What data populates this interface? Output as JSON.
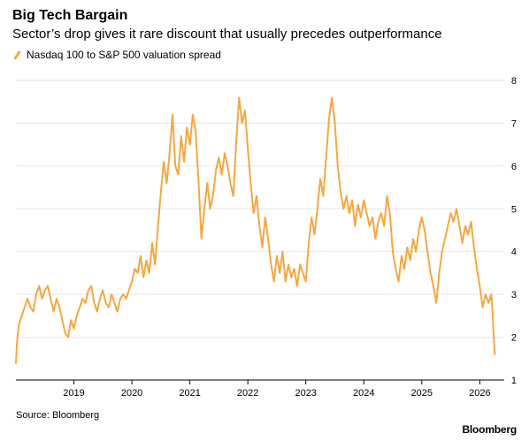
{
  "header": {
    "title": "Big Tech Bargain",
    "subtitle": "Sector’s drop gives it rare discount that usually precedes outperformance"
  },
  "legend": {
    "label": "Nasdaq 100 to S&P 500 valuation spread"
  },
  "footer": {
    "source": "Source: Bloomberg",
    "brand": "Bloomberg"
  },
  "colors": {
    "series": "#f5a742",
    "grid": "#e6e6e6",
    "axis": "#000000"
  },
  "chart_data": {
    "type": "line",
    "title": "Big Tech Bargain",
    "subtitle": "Sector’s drop gives it rare discount that usually precedes outperformance",
    "xlabel": "",
    "ylabel": "",
    "xlim": [
      2018.0,
      2026.3
    ],
    "ylim": [
      1,
      8
    ],
    "x_ticks": [
      2019,
      2020,
      2021,
      2022,
      2023,
      2024,
      2025,
      2026
    ],
    "x_tick_labels": [
      "2019",
      "2020",
      "2021",
      "2022",
      "2023",
      "2024",
      "2025",
      "2026"
    ],
    "y_ticks": [
      1,
      2,
      3,
      4,
      5,
      6,
      7,
      8
    ],
    "y_tick_labels": [
      "1",
      "2",
      "3",
      "4",
      "5",
      "6",
      "7",
      "8"
    ],
    "y_axis_side": "right",
    "grid": true,
    "series": [
      {
        "name": "Nasdaq 100 to S&P 500 valuation spread",
        "points": [
          [
            2018.0,
            1.4
          ],
          [
            2018.02,
            1.9
          ],
          [
            2018.05,
            2.3
          ],
          [
            2018.1,
            2.5
          ],
          [
            2018.15,
            2.7
          ],
          [
            2018.2,
            2.9
          ],
          [
            2018.25,
            2.7
          ],
          [
            2018.3,
            2.6
          ],
          [
            2018.35,
            3.0
          ],
          [
            2018.4,
            3.2
          ],
          [
            2018.45,
            2.9
          ],
          [
            2018.5,
            3.1
          ],
          [
            2018.55,
            3.2
          ],
          [
            2018.6,
            2.9
          ],
          [
            2018.65,
            2.6
          ],
          [
            2018.7,
            2.9
          ],
          [
            2018.75,
            2.7
          ],
          [
            2018.8,
            2.4
          ],
          [
            2018.85,
            2.1
          ],
          [
            2018.9,
            2.0
          ],
          [
            2018.95,
            2.4
          ],
          [
            2019.0,
            2.2
          ],
          [
            2019.05,
            2.5
          ],
          [
            2019.1,
            2.7
          ],
          [
            2019.15,
            2.9
          ],
          [
            2019.2,
            2.8
          ],
          [
            2019.25,
            3.1
          ],
          [
            2019.3,
            3.2
          ],
          [
            2019.35,
            2.8
          ],
          [
            2019.4,
            2.6
          ],
          [
            2019.45,
            2.9
          ],
          [
            2019.5,
            3.1
          ],
          [
            2019.55,
            2.8
          ],
          [
            2019.6,
            2.7
          ],
          [
            2019.65,
            3.0
          ],
          [
            2019.7,
            2.8
          ],
          [
            2019.75,
            2.6
          ],
          [
            2019.8,
            2.9
          ],
          [
            2019.85,
            3.0
          ],
          [
            2019.9,
            2.9
          ],
          [
            2019.95,
            3.1
          ],
          [
            2020.0,
            3.3
          ],
          [
            2020.05,
            3.6
          ],
          [
            2020.1,
            3.5
          ],
          [
            2020.15,
            3.9
          ],
          [
            2020.2,
            3.4
          ],
          [
            2020.25,
            3.8
          ],
          [
            2020.3,
            3.5
          ],
          [
            2020.35,
            4.2
          ],
          [
            2020.4,
            3.7
          ],
          [
            2020.45,
            4.6
          ],
          [
            2020.5,
            5.4
          ],
          [
            2020.55,
            6.1
          ],
          [
            2020.6,
            5.6
          ],
          [
            2020.65,
            6.3
          ],
          [
            2020.7,
            7.2
          ],
          [
            2020.75,
            6.0
          ],
          [
            2020.8,
            5.8
          ],
          [
            2020.85,
            6.7
          ],
          [
            2020.9,
            6.1
          ],
          [
            2020.95,
            6.9
          ],
          [
            2021.0,
            6.5
          ],
          [
            2021.05,
            7.2
          ],
          [
            2021.1,
            6.8
          ],
          [
            2021.15,
            5.6
          ],
          [
            2021.2,
            4.3
          ],
          [
            2021.25,
            5.0
          ],
          [
            2021.3,
            5.6
          ],
          [
            2021.35,
            5.0
          ],
          [
            2021.4,
            5.3
          ],
          [
            2021.45,
            5.9
          ],
          [
            2021.5,
            6.2
          ],
          [
            2021.55,
            5.8
          ],
          [
            2021.6,
            6.3
          ],
          [
            2021.65,
            6.0
          ],
          [
            2021.7,
            5.6
          ],
          [
            2021.75,
            5.3
          ],
          [
            2021.8,
            6.6
          ],
          [
            2021.85,
            7.6
          ],
          [
            2021.9,
            7.0
          ],
          [
            2021.95,
            7.3
          ],
          [
            2022.0,
            6.4
          ],
          [
            2022.05,
            5.6
          ],
          [
            2022.1,
            4.9
          ],
          [
            2022.15,
            5.3
          ],
          [
            2022.2,
            4.6
          ],
          [
            2022.25,
            4.1
          ],
          [
            2022.3,
            4.8
          ],
          [
            2022.35,
            4.3
          ],
          [
            2022.4,
            3.7
          ],
          [
            2022.45,
            3.3
          ],
          [
            2022.5,
            3.9
          ],
          [
            2022.55,
            3.5
          ],
          [
            2022.6,
            4.0
          ],
          [
            2022.65,
            3.3
          ],
          [
            2022.7,
            3.7
          ],
          [
            2022.75,
            3.4
          ],
          [
            2022.8,
            3.6
          ],
          [
            2022.85,
            3.2
          ],
          [
            2022.9,
            3.7
          ],
          [
            2022.95,
            3.5
          ],
          [
            2023.0,
            3.3
          ],
          [
            2023.05,
            4.2
          ],
          [
            2023.1,
            4.8
          ],
          [
            2023.15,
            4.4
          ],
          [
            2023.2,
            5.0
          ],
          [
            2023.25,
            5.7
          ],
          [
            2023.3,
            5.3
          ],
          [
            2023.35,
            6.2
          ],
          [
            2023.4,
            7.1
          ],
          [
            2023.45,
            7.6
          ],
          [
            2023.5,
            7.0
          ],
          [
            2023.55,
            6.0
          ],
          [
            2023.6,
            5.4
          ],
          [
            2023.65,
            5.0
          ],
          [
            2023.7,
            5.3
          ],
          [
            2023.75,
            4.9
          ],
          [
            2023.8,
            5.2
          ],
          [
            2023.85,
            4.6
          ],
          [
            2023.9,
            5.1
          ],
          [
            2023.95,
            4.8
          ],
          [
            2024.0,
            5.2
          ],
          [
            2024.05,
            4.9
          ],
          [
            2024.1,
            4.6
          ],
          [
            2024.15,
            4.8
          ],
          [
            2024.2,
            4.3
          ],
          [
            2024.25,
            4.7
          ],
          [
            2024.3,
            4.9
          ],
          [
            2024.35,
            4.6
          ],
          [
            2024.4,
            5.3
          ],
          [
            2024.45,
            4.9
          ],
          [
            2024.5,
            4.0
          ],
          [
            2024.55,
            3.6
          ],
          [
            2024.6,
            3.3
          ],
          [
            2024.65,
            3.9
          ],
          [
            2024.7,
            3.6
          ],
          [
            2024.75,
            4.1
          ],
          [
            2024.8,
            3.8
          ],
          [
            2024.85,
            4.3
          ],
          [
            2024.9,
            4.0
          ],
          [
            2024.95,
            4.5
          ],
          [
            2025.0,
            4.8
          ],
          [
            2025.05,
            4.5
          ],
          [
            2025.1,
            4.0
          ],
          [
            2025.15,
            3.5
          ],
          [
            2025.2,
            3.2
          ],
          [
            2025.25,
            2.8
          ],
          [
            2025.3,
            3.5
          ],
          [
            2025.35,
            4.0
          ],
          [
            2025.4,
            4.3
          ],
          [
            2025.45,
            4.6
          ],
          [
            2025.5,
            4.9
          ],
          [
            2025.55,
            4.7
          ],
          [
            2025.6,
            5.0
          ],
          [
            2025.65,
            4.6
          ],
          [
            2025.7,
            4.2
          ],
          [
            2025.75,
            4.6
          ],
          [
            2025.8,
            4.4
          ],
          [
            2025.85,
            4.7
          ],
          [
            2025.9,
            4.1
          ],
          [
            2025.95,
            3.6
          ],
          [
            2026.0,
            3.2
          ],
          [
            2026.05,
            2.7
          ],
          [
            2026.1,
            3.0
          ],
          [
            2026.15,
            2.8
          ],
          [
            2026.2,
            3.0
          ],
          [
            2026.22,
            2.6
          ],
          [
            2026.24,
            2.0
          ],
          [
            2026.26,
            1.6
          ]
        ]
      }
    ]
  }
}
